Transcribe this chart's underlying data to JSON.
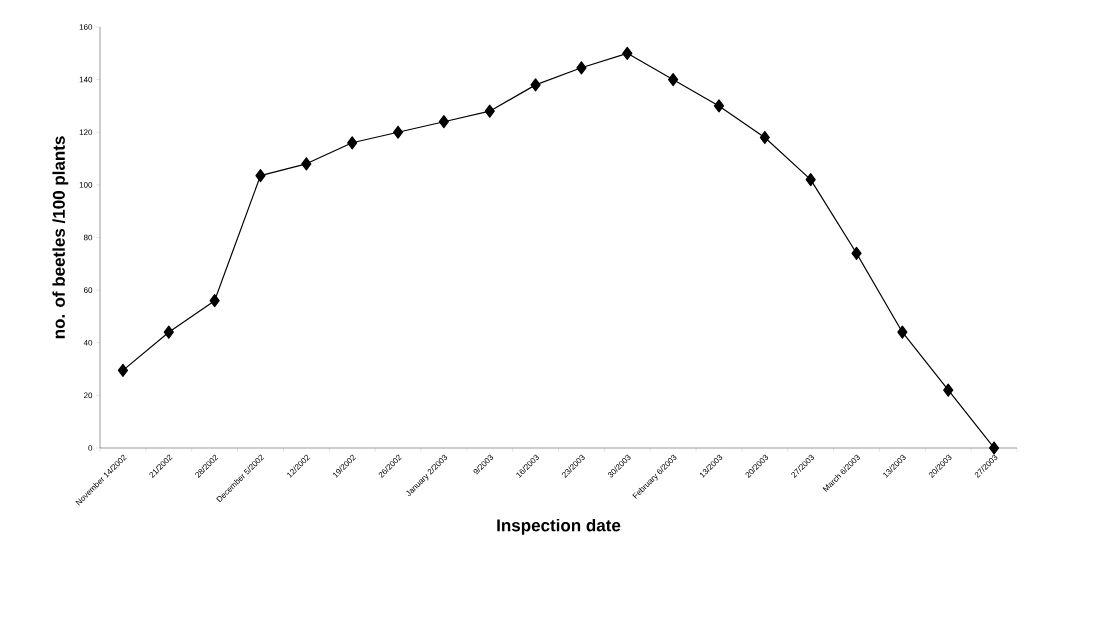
{
  "chart_data": {
    "type": "line",
    "xlabel": "Inspection date",
    "ylabel": "no. of beetles /100 plants",
    "categories": [
      "November 14/2002",
      "21/2002",
      "28/2002",
      "December 5/2002",
      "12/2002",
      "19/2002",
      "26/2002",
      "January  2/2003",
      "9/2003",
      "16/2003",
      "23/2003",
      "30/2003",
      "February  6/2003",
      "13/2003",
      "20/2003",
      "27/2003",
      "March  6/2003",
      "13/2003",
      "20/2003",
      "27/2003"
    ],
    "series": [
      {
        "color": "#000000",
        "values": [
          29.5,
          44,
          56,
          103.5,
          108,
          116,
          120,
          124,
          128,
          138,
          144.5,
          150,
          140,
          130,
          118,
          102,
          74,
          44,
          22,
          0
        ]
      }
    ],
    "ylim": [
      0,
      160
    ],
    "yticks": [
      0,
      20,
      40,
      60,
      80,
      100,
      120,
      140,
      160
    ],
    "marker": "diamond",
    "line_style": "solid",
    "grid": false
  }
}
